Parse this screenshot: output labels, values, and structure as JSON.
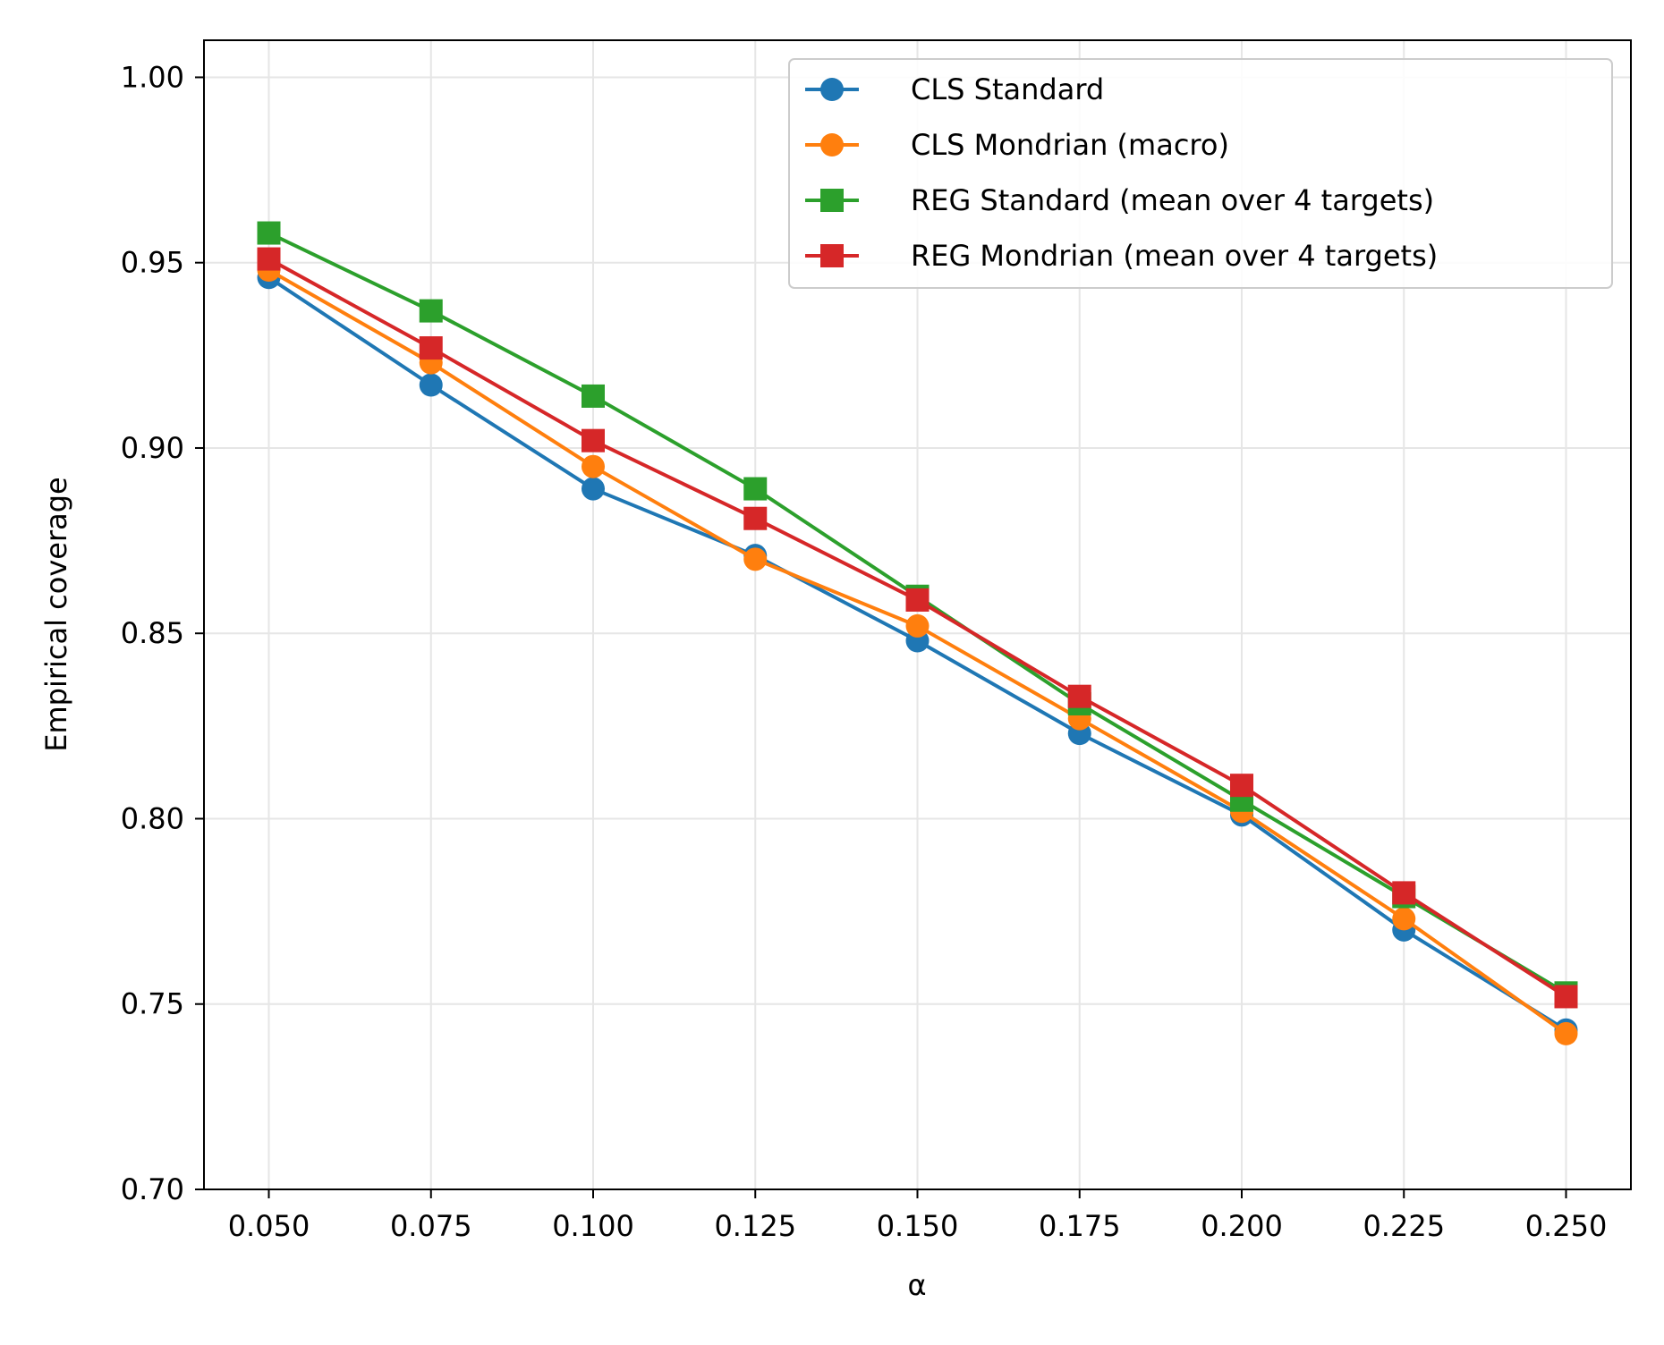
{
  "chart_data": {
    "type": "line",
    "title": "",
    "xlabel": "α",
    "ylabel": "Empirical coverage",
    "xlim": [
      0.04,
      0.26
    ],
    "ylim": [
      0.7,
      1.01
    ],
    "grid": true,
    "legend_position": "top-right",
    "x": [
      0.05,
      0.075,
      0.1,
      0.125,
      0.15,
      0.175,
      0.2,
      0.225,
      0.25
    ],
    "x_tick_labels": [
      "0.050",
      "0.075",
      "0.100",
      "0.125",
      "0.150",
      "0.175",
      "0.200",
      "0.225",
      "0.250"
    ],
    "y_ticks": [
      0.7,
      0.75,
      0.8,
      0.85,
      0.9,
      0.95,
      1.0
    ],
    "y_tick_labels": [
      "0.70",
      "0.75",
      "0.80",
      "0.85",
      "0.90",
      "0.95",
      "1.00"
    ],
    "series": [
      {
        "name": "CLS Standard",
        "color": "#1f77b4",
        "marker": "circle",
        "values": [
          0.946,
          0.917,
          0.889,
          0.871,
          0.848,
          0.823,
          0.801,
          0.77,
          0.743
        ]
      },
      {
        "name": "CLS Mondrian (macro)",
        "color": "#ff7f0e",
        "marker": "circle",
        "values": [
          0.948,
          0.923,
          0.895,
          0.87,
          0.852,
          0.827,
          0.802,
          0.773,
          0.742
        ]
      },
      {
        "name": "REG Standard (mean over 4 targets)",
        "color": "#2ca02c",
        "marker": "square",
        "values": [
          0.958,
          0.937,
          0.914,
          0.889,
          0.86,
          0.831,
          0.805,
          0.779,
          0.753
        ]
      },
      {
        "name": "REG Mondrian (mean over 4 targets)",
        "color": "#d62728",
        "marker": "square",
        "values": [
          0.951,
          0.927,
          0.902,
          0.881,
          0.859,
          0.833,
          0.809,
          0.78,
          0.752
        ]
      }
    ]
  }
}
